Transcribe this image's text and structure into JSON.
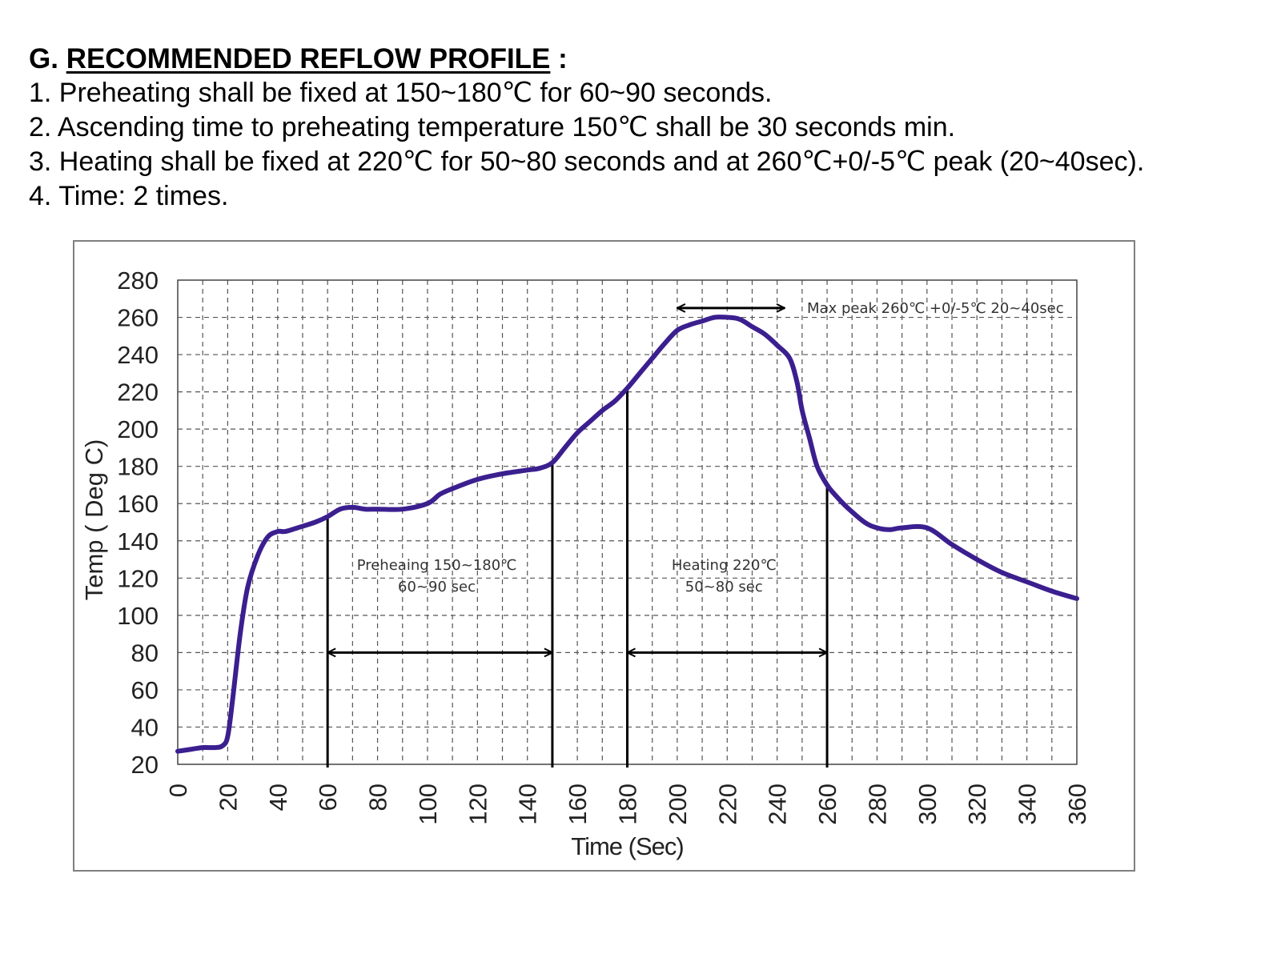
{
  "document": {
    "heading_prefix": "G.",
    "heading_title": "RECOMMENDED REFLOW PROFILE",
    "heading_suffix": " :",
    "lines": [
      "1. Preheating shall be fixed at 150~180℃ for 60~90 seconds.",
      "2. Ascending time to preheating temperature 150℃ shall be 30 seconds min.",
      "3. Heating shall be fixed at 220℃ for 50~80 seconds and at 260℃+0/-5℃ peak (20~40sec).",
      "4. Time: 2 times."
    ]
  },
  "chart_data": {
    "type": "line",
    "title": "",
    "xlabel": "Time (Sec)",
    "ylabel": "Temp ( Deg C)",
    "xlim": [
      0,
      360
    ],
    "ylim": [
      20,
      280
    ],
    "xticks": [
      0,
      20,
      40,
      60,
      80,
      100,
      120,
      140,
      160,
      180,
      200,
      220,
      240,
      260,
      280,
      300,
      320,
      340,
      360
    ],
    "yticks": [
      20,
      40,
      60,
      80,
      100,
      120,
      140,
      160,
      180,
      200,
      220,
      240,
      260,
      280
    ],
    "grid": true,
    "minor_grid_x_step": 10,
    "line_color": "#3b1f8f",
    "series": [
      {
        "x": [
          0,
          5,
          10,
          15,
          18,
          20,
          22,
          25,
          28,
          32,
          36,
          40,
          43,
          48,
          55,
          60,
          65,
          70,
          75,
          80,
          90,
          100,
          105,
          110,
          120,
          130,
          140,
          145,
          150,
          155,
          160,
          165,
          170,
          175,
          180,
          185,
          190,
          195,
          200,
          205,
          210,
          215,
          220,
          225,
          230,
          235,
          240,
          245,
          248,
          250,
          253,
          256,
          260,
          263,
          268,
          275,
          280,
          285,
          290,
          300,
          310,
          320,
          330,
          340,
          350,
          360
        ],
        "y": [
          27,
          28,
          29,
          29,
          30,
          35,
          55,
          90,
          115,
          132,
          142,
          145,
          145,
          147,
          150,
          153,
          157,
          158,
          157,
          157,
          157,
          160,
          165,
          168,
          173,
          176,
          178,
          179,
          182,
          190,
          198,
          204,
          210,
          215,
          222,
          230,
          238,
          246,
          253,
          256,
          258,
          260,
          260,
          259,
          255,
          251,
          245,
          238,
          225,
          210,
          195,
          180,
          170,
          165,
          158,
          150,
          147,
          146,
          147,
          147,
          138,
          130,
          123,
          118,
          113,
          109
        ]
      }
    ],
    "annotations": [
      {
        "text": "Max peak 260℃ +0/-5℃ 20~40sec",
        "arrow_from": 200,
        "arrow_to": 243,
        "arrow_y": 265
      },
      {
        "text": "Preheaing 150~180℃",
        "text2": "60~90 sec",
        "arrow_from": 60,
        "arrow_to": 150,
        "arrow_y": 80,
        "vlines": [
          60,
          150
        ]
      },
      {
        "text": "Heating 220℃",
        "text2": "50~80 sec",
        "arrow_from": 180,
        "arrow_to": 260,
        "arrow_y": 80,
        "vlines": [
          180,
          260
        ]
      }
    ]
  }
}
